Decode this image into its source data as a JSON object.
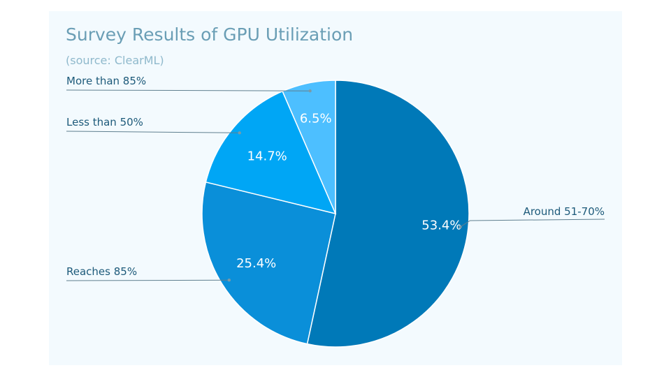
{
  "chart_data": {
    "type": "pie",
    "title": "Survey Results of GPU Utilization",
    "subtitle": "(source: ClearML)",
    "categories": [
      "Around 51-70%",
      "Reaches 85%",
      "Less than 50%",
      "More than 85%"
    ],
    "values": [
      53.4,
      25.4,
      14.7,
      6.5
    ],
    "value_labels": [
      "53.4%",
      "25.4%",
      "14.7%",
      "6.5%"
    ],
    "colors": [
      "#0079b8",
      "#0a8fd9",
      "#00a6f5",
      "#4dbfff"
    ],
    "legend": "external labels with leader lines"
  }
}
